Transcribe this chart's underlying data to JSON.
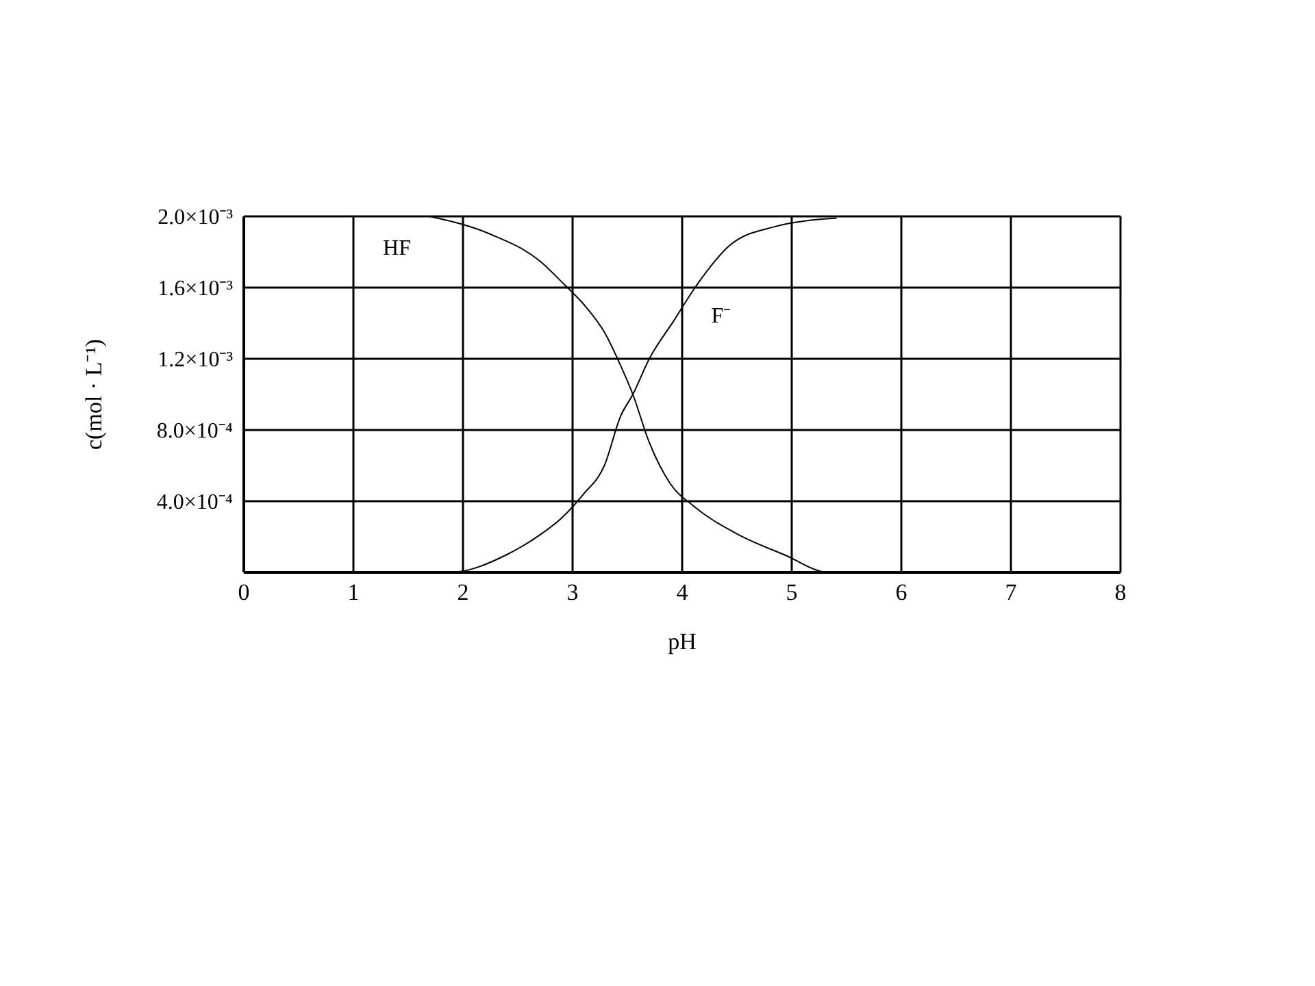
{
  "chart_data": {
    "type": "line",
    "xlabel": "pH",
    "ylabel": "c(mol · L⁻¹)",
    "xlim": [
      0,
      8
    ],
    "xticks": [
      0,
      1,
      2,
      3,
      4,
      5,
      6,
      7,
      8
    ],
    "ylim": [
      0,
      0.002
    ],
    "yticks": [
      {
        "value": 0.0004,
        "label": "4.0×10⁻⁴"
      },
      {
        "value": 0.0008,
        "label": "8.0×10⁻⁴"
      },
      {
        "value": 0.0012,
        "label": "1.2×10⁻³"
      },
      {
        "value": 0.0016,
        "label": "1.6×10⁻³"
      },
      {
        "value": 0.002,
        "label": "2.0×10⁻³"
      }
    ],
    "grid": true,
    "legend": false,
    "marker": "none",
    "line_style": "solid",
    "series": [
      {
        "name": "HF",
        "color": "#000000",
        "x": [
          1.7,
          2.25,
          2.7,
          2.92,
          3.11,
          3.29,
          3.44,
          3.55,
          3.7,
          3.89,
          4.11,
          4.49,
          4.93,
          5.34,
          5.71
        ],
        "values": [
          0.002,
          0.0019,
          0.00175,
          0.00162,
          0.0015,
          0.00135,
          0.00116,
          0.001,
          0.00073,
          0.0005,
          0.00037,
          0.00022,
          0.0001,
          0,
          0
        ]
      },
      {
        "name": "F⁻",
        "color": "#000000",
        "x": [
          0.94,
          1.13,
          1.88,
          2.4,
          2.7,
          2.89,
          3.1,
          3.29,
          3.44,
          3.55,
          3.7,
          3.92,
          4.14,
          4.44,
          4.83,
          5.41
        ],
        "values": [
          0,
          0,
          0,
          0.0001,
          0.00021,
          0.0003,
          0.00044,
          0.0006,
          0.00088,
          0.001,
          0.0012,
          0.00141,
          0.00162,
          0.00184,
          0.00194,
          0.00199
        ]
      }
    ]
  }
}
